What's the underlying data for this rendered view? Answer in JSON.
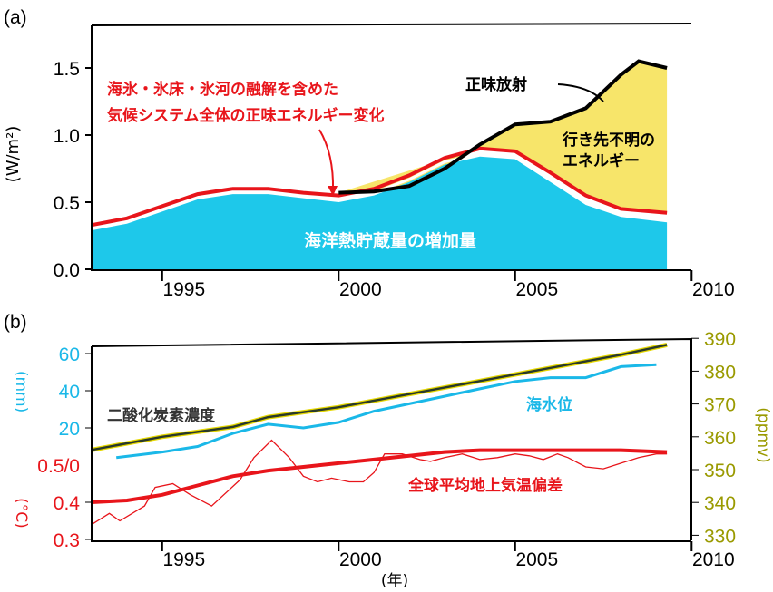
{
  "chart_data": [
    {
      "panel_label": "(a)",
      "type": "area",
      "ylabel": "(W/m²)",
      "xlim": [
        1993,
        2010
      ],
      "ylim": [
        0,
        1.8
      ],
      "xticks": [
        "1995",
        "2000",
        "2005",
        "2010"
      ],
      "yticks": [
        "0.0",
        "0.5",
        "1.0",
        "1.5"
      ],
      "colors": {
        "ocean": "#1ec8ea",
        "unknown": "#f7e56a",
        "total": "#e8151b",
        "net": "#000000"
      },
      "annotations": {
        "total": "海氷・氷床・氷河の融解を含めた",
        "total2": "気候システム全体の正味エネルギー変化",
        "net": "正味放射",
        "unknown": "行き先不明の",
        "unknown2": "エネルギー",
        "ocean": "海洋熱貯蔵量の増加量"
      },
      "x": [
        1993,
        1994,
        1995,
        1996,
        1997,
        1998,
        1999,
        2000,
        2001,
        2002,
        2003,
        2004,
        2005,
        2006,
        2007,
        2008,
        2009.3
      ],
      "series": [
        {
          "name": "気候システム全体の正味エネルギー変化",
          "values": [
            0.33,
            0.38,
            0.47,
            0.56,
            0.6,
            0.6,
            0.57,
            0.55,
            0.6,
            0.7,
            0.83,
            0.9,
            0.88,
            0.72,
            0.55,
            0.45,
            0.42
          ]
        },
        {
          "name": "海洋熱貯蔵量の増加量",
          "values": [
            0.29,
            0.34,
            0.43,
            0.52,
            0.56,
            0.56,
            0.53,
            0.5,
            0.55,
            0.65,
            0.78,
            0.84,
            0.82,
            0.65,
            0.48,
            0.39,
            0.35
          ]
        },
        {
          "name": "正味放射",
          "x": [
            2000,
            2001,
            2002,
            2003,
            2004,
            2005,
            2006,
            2007,
            2008,
            2008.5,
            2009.3
          ],
          "values": [
            0.57,
            0.58,
            0.62,
            0.75,
            0.93,
            1.08,
            1.1,
            1.2,
            1.45,
            1.55,
            1.5
          ]
        }
      ]
    },
    {
      "panel_label": "(b)",
      "type": "line",
      "xlabel": "(年)",
      "xlim": [
        1993,
        2010
      ],
      "xticks": [
        "1995",
        "2000",
        "2005",
        "2010"
      ],
      "left_axis_mm": {
        "label": "(mm)",
        "ticks": [
          "60",
          "40",
          "20"
        ],
        "zero": "0.5/0",
        "color": "#1ab8e8"
      },
      "left_axis_c": {
        "label": "(°C)",
        "ticks": [
          "0.4",
          "0.3"
        ],
        "color": "#e8151b"
      },
      "right_axis": {
        "label": "(ppmv)",
        "ticks": [
          "390",
          "380",
          "370",
          "360",
          "350",
          "340",
          "330"
        ],
        "color": "#9a9a00"
      },
      "labels": {
        "co2": "二酸化炭素濃度",
        "sea": "海水位",
        "temp": "全球平均地上気温偏差"
      },
      "co2": {
        "x": [
          1993,
          1995,
          1997,
          1998,
          2000,
          2002,
          2004,
          2006,
          2008,
          2009.3
        ],
        "values": [
          356,
          360,
          363,
          366,
          369,
          373,
          377,
          381,
          385,
          388
        ]
      },
      "sea_level": {
        "x": [
          1993.7,
          1995,
          1996,
          1997,
          1998,
          1999,
          2000,
          2001,
          2002,
          2003,
          2004,
          2005,
          2006,
          2007,
          2008,
          2009
        ],
        "values": [
          4,
          7,
          10,
          17,
          22,
          20,
          23,
          29,
          33,
          37,
          41,
          45,
          47,
          47,
          53,
          54
        ]
      },
      "temp_smooth": {
        "x": [
          1993,
          1994,
          1995,
          1996,
          1997,
          1998,
          1999,
          2000,
          2001,
          2002,
          2003,
          2004,
          2005,
          2006,
          2007,
          2008,
          2009.3
        ],
        "values": [
          0.4,
          0.405,
          0.42,
          0.445,
          0.47,
          0.485,
          0.495,
          0.505,
          0.515,
          0.525,
          0.535,
          0.54,
          0.54,
          0.54,
          0.54,
          0.54,
          0.535
        ]
      },
      "temp_raw": {
        "x": [
          1993,
          1993.5,
          1993.8,
          1994.5,
          1994.8,
          1995.3,
          1995.8,
          1996.4,
          1997.2,
          1997.6,
          1998.1,
          1998.6,
          1999,
          1999.4,
          1999.8,
          2000.3,
          2000.7,
          2001,
          2001.3,
          2001.8,
          2002.3,
          2002.6,
          2003,
          2003.5,
          2004,
          2004.5,
          2005,
          2005.4,
          2005.8,
          2006.2,
          2006.5,
          2007,
          2007.5,
          2008,
          2008.5,
          2009,
          2009.3
        ],
        "values": [
          0.34,
          0.37,
          0.35,
          0.39,
          0.44,
          0.45,
          0.42,
          0.39,
          0.46,
          0.52,
          0.567,
          0.52,
          0.47,
          0.455,
          0.465,
          0.455,
          0.455,
          0.48,
          0.53,
          0.53,
          0.515,
          0.51,
          0.52,
          0.53,
          0.515,
          0.52,
          0.53,
          0.525,
          0.515,
          0.53,
          0.52,
          0.495,
          0.49,
          0.505,
          0.52,
          0.53,
          0.53
        ]
      }
    }
  ]
}
